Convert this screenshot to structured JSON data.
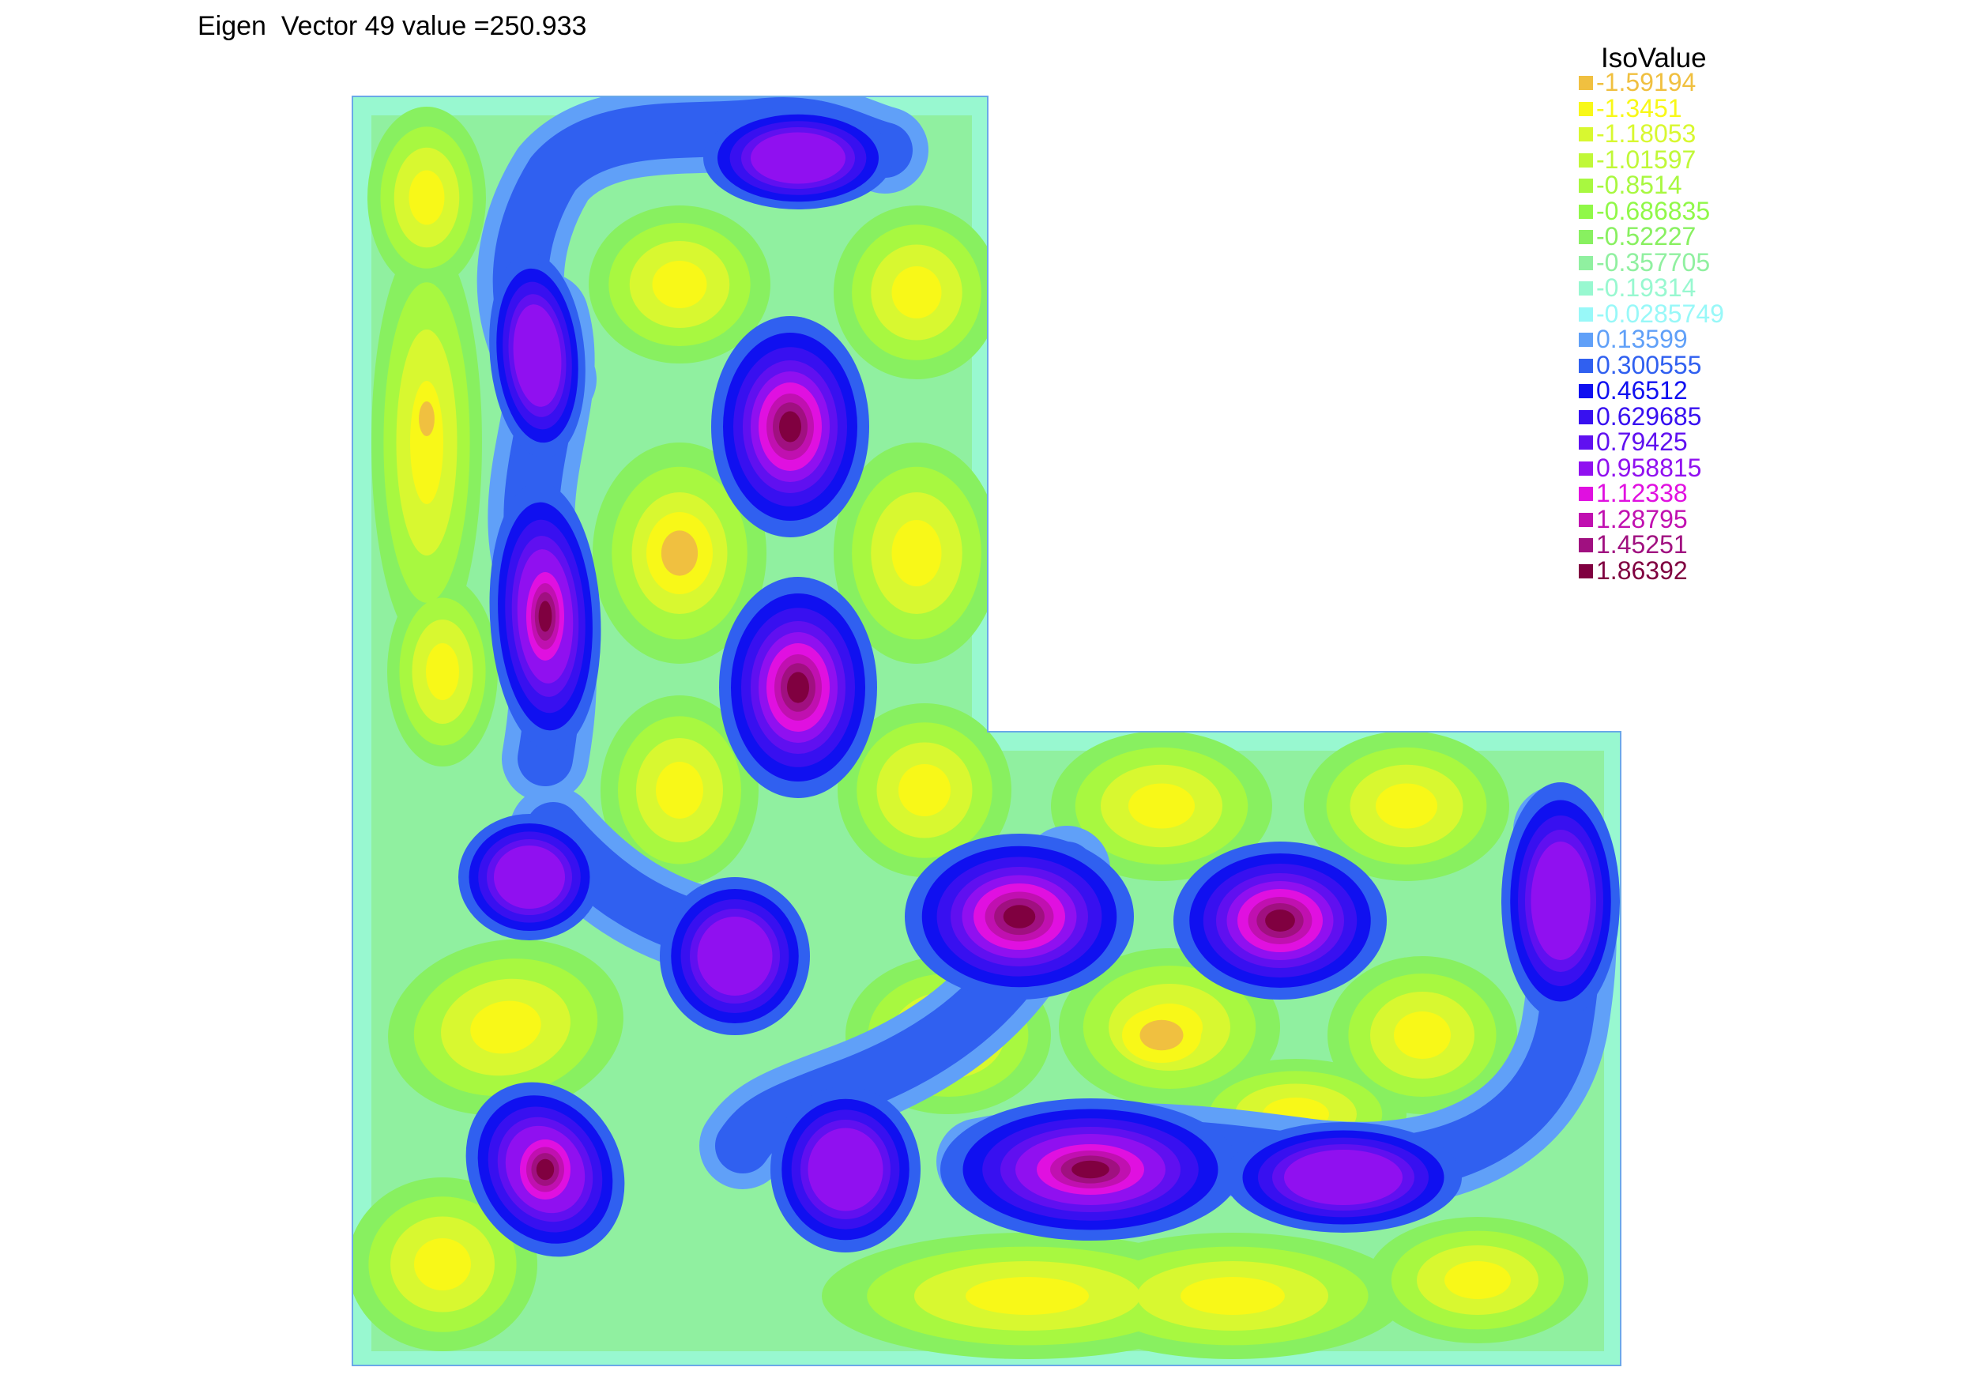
{
  "title": "Eigen  Vector 49 value =250.933",
  "legend": {
    "title": "IsoValue",
    "items": [
      {
        "label": "-1.59194",
        "color": "#f0c040"
      },
      {
        "label": "-1.3451",
        "color": "#f8f818"
      },
      {
        "label": "-1.18053",
        "color": "#d8f830"
      },
      {
        "label": "-1.01597",
        "color": "#c0f838"
      },
      {
        "label": "-0.8514",
        "color": "#a8f840"
      },
      {
        "label": "-0.686835",
        "color": "#90f848"
      },
      {
        "label": "-0.52227",
        "color": "#88f060"
      },
      {
        "label": "-0.357705",
        "color": "#90f0a0"
      },
      {
        "label": "-0.19314",
        "color": "#98f8d0"
      },
      {
        "label": "-0.0285749",
        "color": "#98f8f8"
      },
      {
        "label": "0.13599",
        "color": "#60a0f8"
      },
      {
        "label": "0.300555",
        "color": "#3060f0"
      },
      {
        "label": "0.46512",
        "color": "#1010f0"
      },
      {
        "label": "0.629685",
        "color": "#3810f0"
      },
      {
        "label": "0.79425",
        "color": "#6010f0"
      },
      {
        "label": "0.958815",
        "color": "#9010f0"
      },
      {
        "label": "1.12338",
        "color": "#e010e0"
      },
      {
        "label": "1.28795",
        "color": "#c010b0"
      },
      {
        "label": "1.45251",
        "color": "#a01080"
      },
      {
        "label": "1.86392",
        "color": "#800040"
      }
    ]
  },
  "chart_data": {
    "type": "heatmap",
    "title": "Eigen  Vector 49 value =250.933",
    "domain": "L-shaped region",
    "levels": [
      -1.59194,
      -1.3451,
      -1.18053,
      -1.01597,
      -0.8514,
      -0.686835,
      -0.52227,
      -0.357705,
      -0.19314,
      -0.0285749,
      0.13599,
      0.300555,
      0.46512,
      0.629685,
      0.79425,
      0.958815,
      1.12338,
      1.28795,
      1.45251,
      1.86392
    ]
  }
}
